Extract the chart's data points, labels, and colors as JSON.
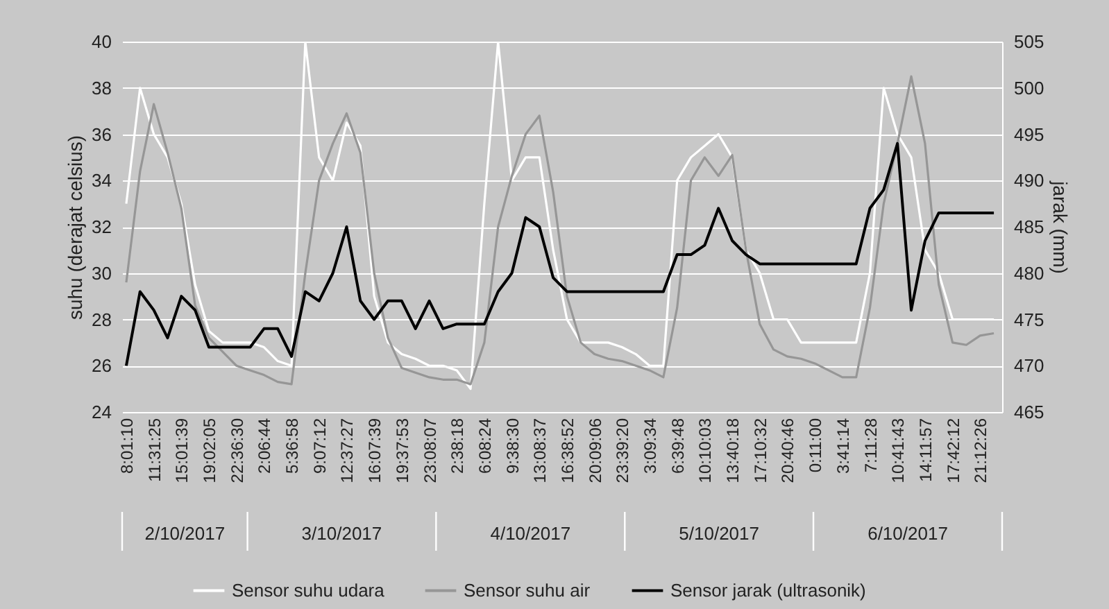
{
  "chart_data": {
    "type": "line",
    "categories": [
      "8:01:10",
      null,
      "11:31:25",
      null,
      "15:01:39",
      null,
      "19:02:05",
      null,
      "22:36:30",
      null,
      "2:06:44",
      null,
      "5:36:58",
      null,
      "9:07:12",
      null,
      "12:37:27",
      null,
      "16:07:39",
      null,
      "19:37:53",
      null,
      "23:08:07",
      null,
      "2:38:18",
      null,
      "6:08:24",
      null,
      "9:38:30",
      null,
      "13:08:37",
      null,
      "16:38:52",
      null,
      "20:09:06",
      null,
      "23:39:20",
      null,
      "3:09:34",
      null,
      "6:39:48",
      null,
      "10:10:03",
      null,
      "13:40:18",
      null,
      "17:10:32",
      null,
      "20:40:46",
      null,
      "0:11:00",
      null,
      "3:41:14",
      null,
      "7:11:28",
      null,
      "10:41:43",
      null,
      "14:11:57",
      null,
      "17:42:12",
      null,
      "21:12:26",
      null
    ],
    "series": [
      {
        "name": "Sensor suhu udara",
        "color": "#ffffff",
        "values": [
          33,
          38,
          36,
          35,
          33,
          29.5,
          27.5,
          27,
          27,
          27,
          26.8,
          26.2,
          26,
          40,
          35,
          34,
          36.5,
          35.5,
          29,
          27,
          26.5,
          26.3,
          26,
          26,
          25.8,
          25,
          33,
          40,
          34,
          35,
          35,
          31,
          28,
          27,
          27,
          27,
          26.8,
          26.5,
          26,
          26,
          34,
          35,
          35.5,
          36,
          35,
          31,
          30,
          28,
          28,
          27,
          27,
          27,
          27,
          27,
          30,
          38,
          36,
          35,
          31,
          30,
          28,
          28,
          28,
          28
        ]
      },
      {
        "name": "Sensor suhu air",
        "color": "#969696",
        "values": [
          29.6,
          34.4,
          37.3,
          35.2,
          32.8,
          28.6,
          27.2,
          26.6,
          26,
          25.8,
          25.6,
          25.3,
          25.2,
          30,
          34,
          35.6,
          36.9,
          35.2,
          30,
          27.2,
          25.9,
          25.7,
          25.5,
          25.4,
          25.4,
          25.2,
          27,
          32,
          34.2,
          36,
          36.8,
          33.5,
          29,
          27,
          26.5,
          26.3,
          26.2,
          26,
          25.8,
          25.5,
          28.5,
          34,
          35,
          34.2,
          35.1,
          31,
          27.8,
          26.7,
          26.4,
          26.3,
          26.1,
          25.8,
          25.5,
          25.5,
          28.5,
          33,
          35.6,
          38.5,
          35.6,
          29.5,
          27,
          26.9,
          27.3,
          27.4
        ]
      },
      {
        "name": "Sensor jarak (ultrasonik)",
        "color": "#000000",
        "axis": "y2",
        "values": [
          470,
          478,
          476,
          473,
          477.5,
          476,
          472,
          472,
          472,
          472,
          474,
          474,
          471,
          478,
          477,
          480,
          485,
          477,
          475,
          477,
          477,
          474,
          477,
          474,
          474.5,
          474.5,
          474.5,
          478,
          480,
          486,
          485,
          479.5,
          478,
          478,
          478,
          478,
          478,
          478,
          478,
          478,
          482,
          482,
          483,
          487,
          483.5,
          482,
          481,
          481,
          481,
          481,
          481,
          481,
          481,
          481,
          487,
          489,
          494,
          476,
          483.5,
          486.5,
          486.5,
          486.5,
          486.5,
          486.5
        ]
      }
    ],
    "ylabel": "suhu (derajat celsius)",
    "y2label": "jarak (mm)",
    "ylim": [
      24,
      40
    ],
    "yticks": [
      24,
      26,
      28,
      30,
      32,
      34,
      36,
      38,
      40
    ],
    "y2lim": [
      465,
      505
    ],
    "y2ticks": [
      465,
      470,
      475,
      480,
      485,
      490,
      495,
      500,
      505
    ],
    "grid": "y",
    "legend": "bottom",
    "annotations": [
      "2/10/2017",
      "3/10/2017",
      "4/10/2017",
      "5/10/2017",
      "6/10/2017"
    ]
  }
}
